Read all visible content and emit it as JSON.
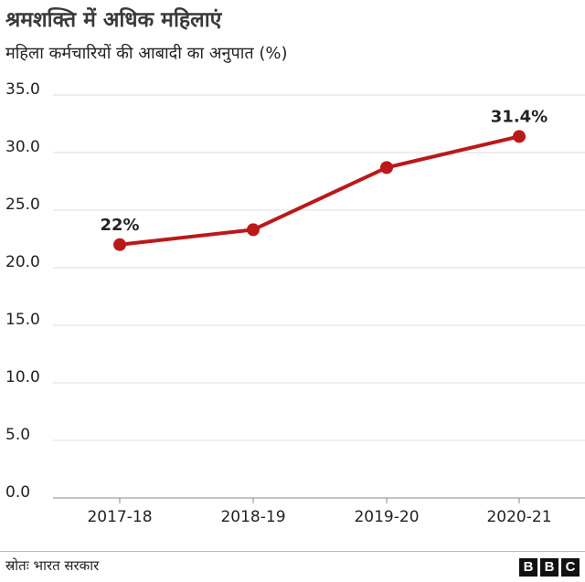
{
  "title": "श्रमशक्ति में अधिक महिलाएं",
  "subtitle": "महिला कर्मचारियों की आबादी का अनुपात (%)",
  "source": "स्रोतः भारत सरकार",
  "brand": {
    "letters": [
      "B",
      "B",
      "C"
    ]
  },
  "colors": {
    "series": "#bb1919",
    "grid": "#dddddd",
    "axis": "#888888"
  },
  "chart_data": {
    "type": "line",
    "categories": [
      "2017-18",
      "2018-19",
      "2019-20",
      "2020-21"
    ],
    "values": [
      22.0,
      23.3,
      28.7,
      31.4
    ],
    "data_labels": [
      "22%",
      "",
      "",
      "31.4%"
    ],
    "yticks": [
      "35.0",
      "30.0",
      "25.0",
      "20.0",
      "15.0",
      "10.0",
      "5.0",
      "0.0"
    ],
    "ylim": [
      0,
      35
    ],
    "grid": true,
    "markers": true
  }
}
